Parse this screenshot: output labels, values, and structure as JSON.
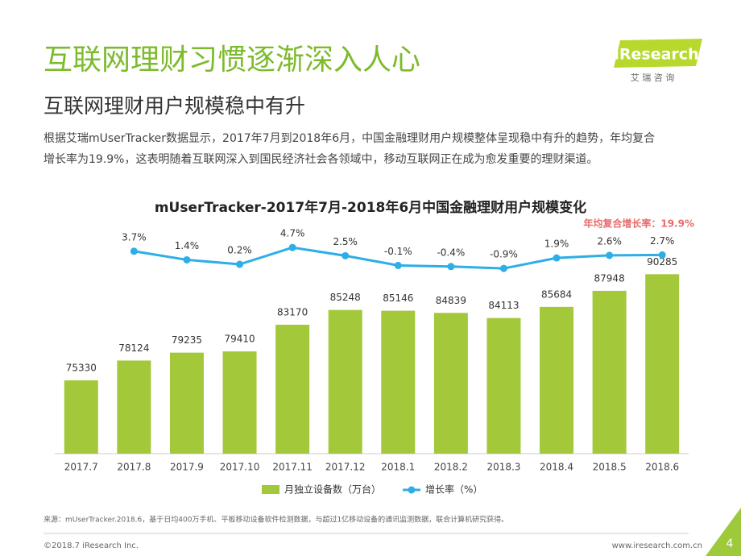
{
  "header": {
    "title": "互联网理财习惯逐渐深入人心",
    "subtitle": "互联网理财用户规模稳中有升",
    "paragraph": [
      "根据艾瑞mUserTracker数据显示，2017年7月到2018年6月，中国金融理财用户规模整体呈现稳中有升的趋势，年均复合",
      "增长率为19.9%，这表明随着互联网深入到国民经济社会各领域中，移动互联网正在成为愈发重要的理财渠道。"
    ]
  },
  "logo": {
    "brand": "iResearch",
    "sub": "艾 瑞 咨 询"
  },
  "chart_data": {
    "type": "bar",
    "title": "mUserTracker-2017年7月-2018年6月中国金融理财用户规模变化",
    "annotation": "年均复合增长率：19.9%",
    "categories": [
      "2017.7",
      "2017.8",
      "2017.9",
      "2017.10",
      "2017.11",
      "2017.12",
      "2018.1",
      "2018.2",
      "2018.3",
      "2018.4",
      "2018.5",
      "2018.6"
    ],
    "series": [
      {
        "name": "月独立设备数（万台）",
        "color": "#a3c83a",
        "type": "bar",
        "values": [
          75330,
          78124,
          79235,
          79410,
          83170,
          85248,
          85146,
          84839,
          84113,
          85684,
          87948,
          90285
        ]
      },
      {
        "name": "增长率（%）",
        "color": "#2eaee6",
        "type": "line",
        "axis": "y2",
        "values": [
          null,
          3.7,
          1.4,
          0.2,
          4.7,
          2.5,
          -0.1,
          -0.4,
          -0.9,
          1.9,
          2.6,
          2.7
        ],
        "value_labels": [
          null,
          "3.7%",
          "1.4%",
          "0.2%",
          "4.7%",
          "2.5%",
          "-0.1%",
          "-0.4%",
          "-0.9%",
          "1.9%",
          "2.6%",
          "2.7%"
        ]
      }
    ],
    "ylim": [
      65000,
      96000
    ],
    "y2lim": [
      -50.5,
      8.4
    ],
    "legend": "bottom"
  },
  "footer": {
    "source": "来源：mUserTracker.2018.6，基于日均400万手机、平板移动设备软件检测数据，与超过1亿移动设备的通讯监测数据，联合计算机研究获得。",
    "copyright": "©2018.7 iResearch Inc.",
    "website": "www.iresearch.com.cn",
    "page": "4"
  }
}
